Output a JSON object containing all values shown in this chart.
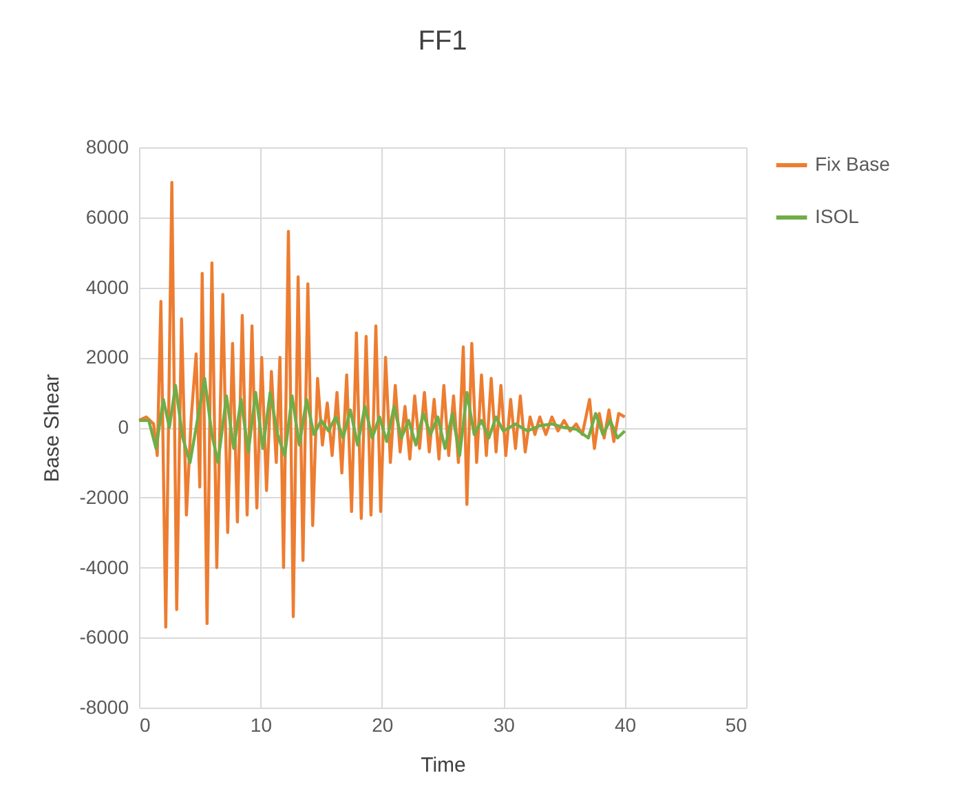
{
  "chart_data": {
    "type": "line",
    "title": "FF1",
    "xlabel": "Time",
    "ylabel": "Base Shear",
    "xlim": [
      0,
      50
    ],
    "xticks": [
      0,
      10,
      20,
      30,
      40,
      50
    ],
    "ylim": [
      -8000,
      8000
    ],
    "yticks": [
      -8000,
      -6000,
      -4000,
      -2000,
      0,
      2000,
      4000,
      6000,
      8000
    ],
    "grid": true,
    "legend": "right",
    "marker": "none",
    "line_style": "solid",
    "series": [
      {
        "name": "Fix Base",
        "color": "#ed7d31",
        "x": [
          0,
          0.6,
          1.2,
          1.5,
          1.8,
          2.2,
          2.7,
          3.1,
          3.5,
          3.9,
          4.3,
          4.7,
          5.0,
          5.2,
          5.6,
          6.0,
          6.4,
          6.9,
          7.3,
          7.7,
          8.1,
          8.5,
          8.9,
          9.3,
          9.7,
          10.1,
          10.5,
          10.9,
          11.3,
          11.6,
          11.9,
          12.3,
          12.7,
          13.1,
          13.5,
          13.9,
          14.3,
          14.7,
          15.1,
          15.5,
          15.9,
          16.3,
          16.7,
          17.1,
          17.5,
          17.9,
          18.3,
          18.7,
          19.1,
          19.5,
          19.9,
          20.3,
          20.7,
          21.1,
          21.5,
          21.9,
          22.3,
          22.7,
          23.1,
          23.5,
          23.9,
          24.3,
          24.7,
          25.1,
          25.5,
          25.9,
          26.3,
          26.7,
          27.0,
          27.4,
          27.8,
          28.2,
          28.6,
          29.0,
          29.4,
          29.8,
          30.2,
          30.6,
          31.0,
          31.4,
          31.8,
          32.2,
          32.6,
          33.0,
          33.5,
          34.0,
          34.5,
          35.0,
          35.5,
          36.0,
          36.5,
          37.1,
          37.5,
          37.9,
          38.3,
          38.7,
          39.1,
          39.5,
          40.0
        ],
        "values": [
          200,
          300,
          100,
          -800,
          3600,
          -5700,
          7000,
          -5200,
          3100,
          -2500,
          300,
          2100,
          -1700,
          4400,
          -5600,
          4700,
          -4000,
          3800,
          -3000,
          2400,
          -2700,
          3200,
          -2500,
          2900,
          -2300,
          2000,
          -1800,
          1600,
          -1000,
          2000,
          -4000,
          5600,
          -5400,
          4300,
          -3800,
          4100,
          -2800,
          1400,
          -500,
          700,
          -800,
          1000,
          -1300,
          1500,
          -2400,
          2700,
          -2600,
          2600,
          -2500,
          2900,
          -2400,
          2000,
          -1000,
          1200,
          -700,
          600,
          -900,
          900,
          -600,
          1000,
          -700,
          800,
          -900,
          1200,
          -800,
          900,
          -1000,
          2300,
          -2200,
          2400,
          -1000,
          1500,
          -800,
          1400,
          -700,
          1200,
          -800,
          800,
          -600,
          900,
          -700,
          300,
          -200,
          300,
          -200,
          300,
          -100,
          200,
          -100,
          100,
          -200,
          800,
          -600,
          400,
          -300,
          500,
          -400,
          400,
          300
        ]
      },
      {
        "name": "ISOL",
        "color": "#70ad47",
        "x": [
          0,
          0.8,
          1.4,
          2.0,
          2.5,
          3.0,
          3.6,
          4.2,
          4.8,
          5.4,
          6.0,
          6.5,
          7.2,
          7.8,
          8.4,
          9.0,
          9.6,
          10.2,
          10.8,
          11.4,
          12.0,
          12.6,
          13.2,
          13.8,
          14.4,
          15.0,
          15.6,
          16.2,
          16.8,
          17.4,
          18.0,
          18.6,
          19.2,
          19.8,
          20.4,
          21.0,
          21.6,
          22.2,
          22.8,
          23.4,
          24.0,
          24.6,
          25.2,
          25.8,
          26.4,
          27.0,
          27.6,
          28.2,
          28.8,
          29.4,
          30.0,
          31.0,
          32.0,
          33.0,
          34.0,
          35.0,
          36.0,
          37.0,
          37.6,
          38.2,
          38.8,
          39.4,
          40.0
        ],
        "values": [
          200,
          200,
          -600,
          800,
          0,
          1200,
          -300,
          -1000,
          200,
          1400,
          -200,
          -1000,
          900,
          -600,
          800,
          -700,
          1000,
          -600,
          1000,
          -200,
          -800,
          900,
          -500,
          800,
          -200,
          200,
          -100,
          300,
          -300,
          500,
          -500,
          600,
          -300,
          300,
          -400,
          600,
          -300,
          200,
          -500,
          400,
          -200,
          300,
          -600,
          400,
          -800,
          1000,
          -200,
          200,
          -300,
          300,
          -100,
          100,
          -100,
          50,
          100,
          0,
          -50,
          -300,
          400,
          -200,
          200,
          -300,
          -100
        ]
      }
    ]
  }
}
